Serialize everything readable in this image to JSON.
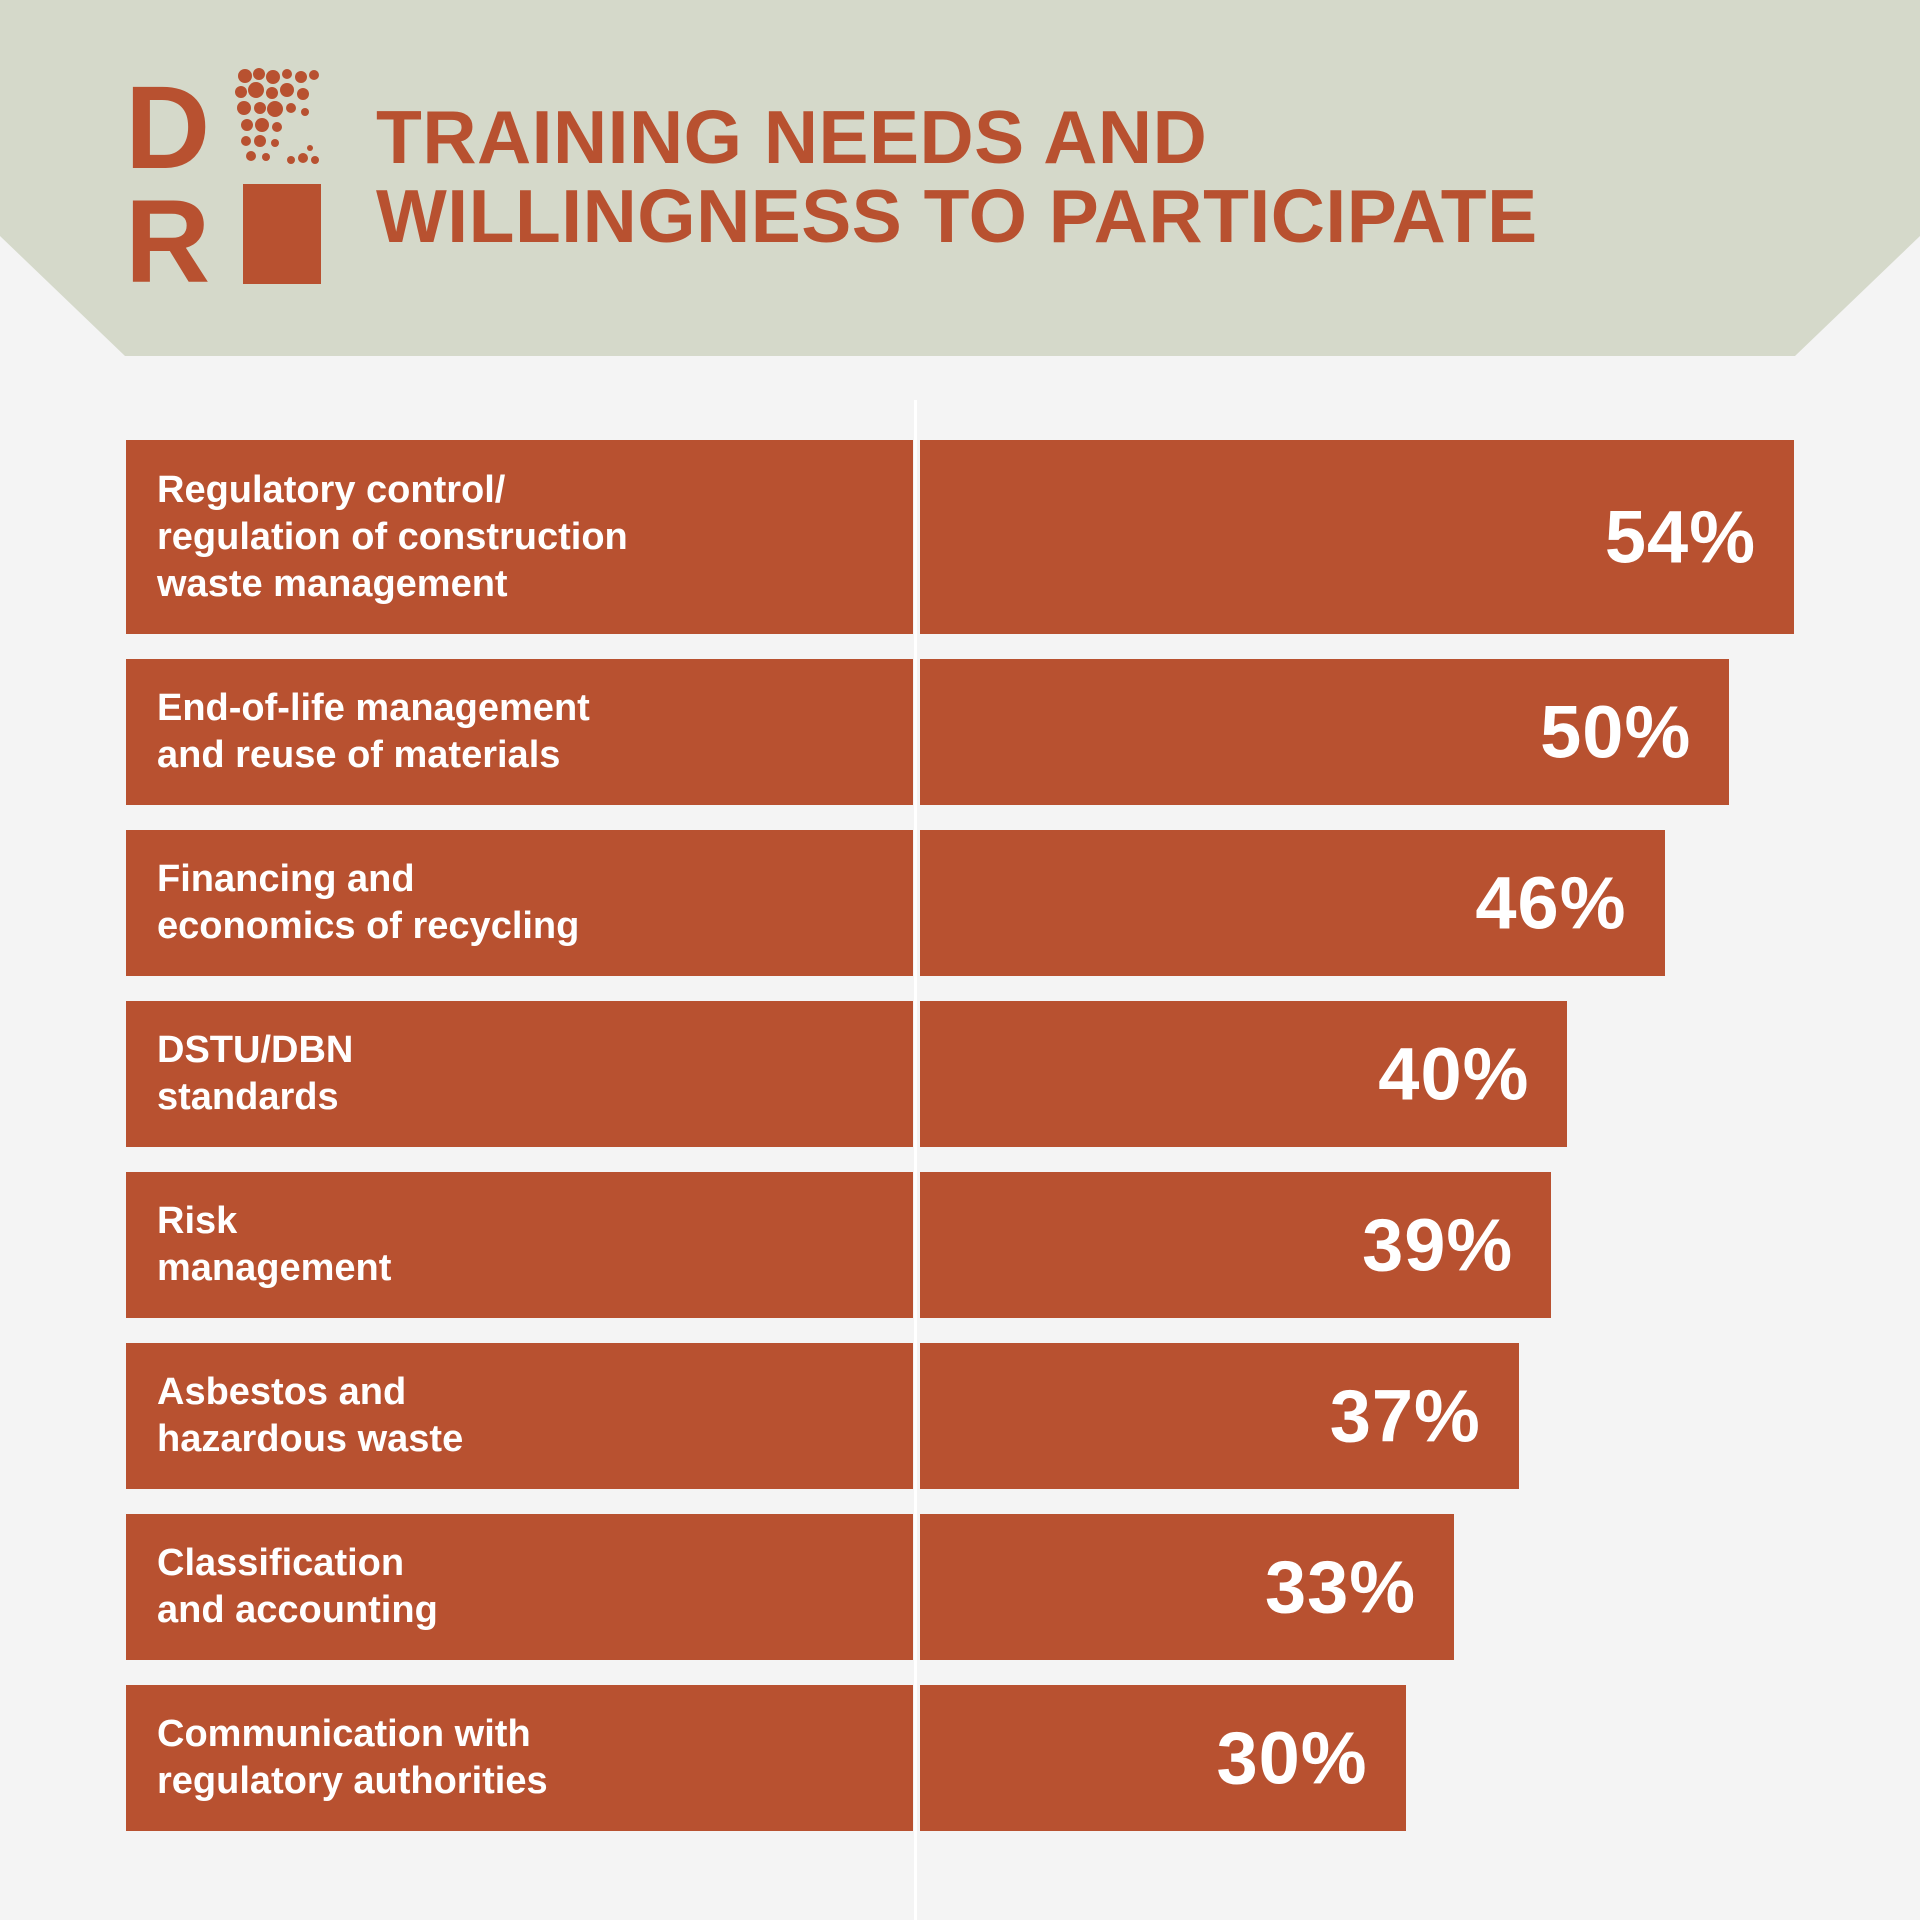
{
  "colors": {
    "accent": "#b85130",
    "header_band": "#d5d9ca",
    "background": "#f4f4f4",
    "bar_text": "#ffffff"
  },
  "logo": {
    "letters": [
      "D",
      "R"
    ],
    "icon": "dr-logo-icon"
  },
  "header": {
    "title_line1": "TRAINING NEEDS AND",
    "title_line2": "WILLINGNESS TO PARTICIPATE"
  },
  "chart_data": {
    "type": "bar",
    "orientation": "horizontal",
    "title": "TRAINING NEEDS AND WILLINGNESS TO PARTICIPATE",
    "xlabel": "",
    "ylabel": "",
    "xlim": [
      0,
      54
    ],
    "grid": false,
    "categories": [
      "Regulatory control/\nregulation of construction\nwaste management",
      "End-of-life management\nand reuse of materials",
      "Financing and\neconomics of recycling",
      "DSTU/DBN\nstandards",
      "Risk\nmanagement",
      "Asbestos and\nhazardous waste",
      "Classification\nand accounting",
      "Communication with\nregulatory authorities"
    ],
    "values": [
      54,
      50,
      46,
      40,
      39,
      37,
      33,
      30
    ],
    "value_labels": [
      "54%",
      "50%",
      "46%",
      "40%",
      "39%",
      "37%",
      "33%",
      "30%"
    ]
  }
}
